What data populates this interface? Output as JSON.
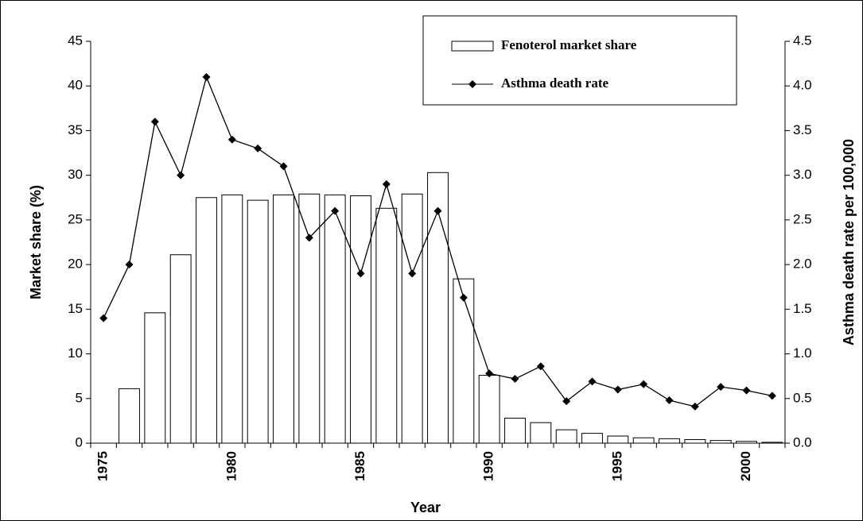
{
  "chart_data": {
    "type": "bar_line",
    "x_label": "Year",
    "y_label": "Market share (%)",
    "y2_label": "Asthma death rate per 100,000",
    "categories": [
      "1975",
      null,
      null,
      null,
      null,
      "1980",
      null,
      null,
      null,
      null,
      "1985",
      null,
      null,
      null,
      null,
      "1990",
      null,
      null,
      null,
      null,
      "1995",
      null,
      null,
      null,
      null,
      "2000",
      null
    ],
    "series": [
      {
        "name": "Fenoterol market share",
        "type": "bar",
        "color": "#ffffff",
        "edge_color": "#000000",
        "values": [
          null,
          6.1,
          14.6,
          21.1,
          27.5,
          27.8,
          27.2,
          27.8,
          27.9,
          27.8,
          27.7,
          26.3,
          27.9,
          30.3,
          18.4,
          7.6,
          2.8,
          2.3,
          1.5,
          1.1,
          0.8,
          0.6,
          0.5,
          0.4,
          0.3,
          0.2,
          0.1
        ]
      },
      {
        "name": "Asthma death rate",
        "type": "line",
        "axis": "y2",
        "color": "#000000",
        "marker": "diamond",
        "values": [
          1.4,
          2.0,
          3.6,
          3.0,
          4.1,
          3.4,
          3.3,
          3.1,
          2.3,
          2.6,
          1.9,
          2.9,
          1.9,
          2.6,
          1.63,
          0.78,
          0.72,
          0.86,
          0.47,
          0.69,
          0.6,
          0.66,
          0.48,
          0.41,
          0.63,
          0.59,
          0.53
        ]
      }
    ],
    "ylim": [
      0,
      45
    ],
    "yticks": [
      0,
      5,
      10,
      15,
      20,
      25,
      30,
      35,
      40,
      45
    ],
    "y2lim": [
      0,
      4.5
    ],
    "y2ticks": [
      {
        "value": 0,
        "label": "0.0"
      },
      0.5,
      {
        "value": 1,
        "label": "1.0"
      },
      1.5,
      {
        "value": 2,
        "label": "2.0"
      },
      2.5,
      {
        "value": 3,
        "label": "3.0"
      },
      3.5,
      {
        "value": 4,
        "label": "4.0"
      },
      4.5
    ],
    "legend": "top-right",
    "grid": false
  }
}
